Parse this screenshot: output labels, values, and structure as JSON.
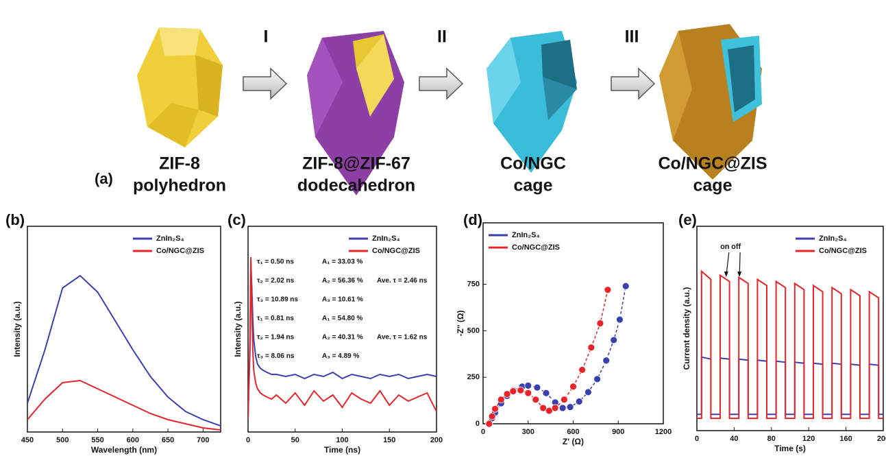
{
  "diagram": {
    "label": "(a)",
    "steps": [
      "I",
      "II",
      "III"
    ],
    "stages": [
      {
        "line1": "ZIF-8",
        "line2": "polyhedron"
      },
      {
        "line1": "ZIF-8@ZIF-67",
        "line2": "dodecahedron"
      },
      {
        "line1": "Co/NGC",
        "line2": "cage"
      },
      {
        "line1": "Co/NGC@ZIS",
        "line2": "cage"
      }
    ]
  },
  "chart_data": [
    {
      "type": "line",
      "label": "(b)",
      "x_label": "Wavelength (nm)",
      "y_label": "Intensity (a.u.)",
      "legend": "upper right",
      "xlim": [
        450,
        725
      ],
      "xticks": [
        450,
        500,
        550,
        600,
        650,
        700
      ],
      "ylim": [
        0,
        100
      ],
      "x": [
        450,
        475,
        500,
        525,
        550,
        575,
        600,
        625,
        650,
        675,
        700,
        725
      ],
      "series": [
        {
          "name": "ZnIn₂S₄",
          "color": "#3a3fb0",
          "values": [
            14,
            40,
            70,
            76,
            68,
            54,
            40,
            27,
            17,
            10,
            6,
            3
          ]
        },
        {
          "name": "Co/NGC@ZIS",
          "color": "#e8242a",
          "values": [
            6,
            16,
            24,
            25,
            21,
            17,
            13,
            9,
            6,
            4,
            2,
            1
          ]
        }
      ]
    },
    {
      "type": "line",
      "label": "(c)",
      "x_label": "Time (ns)",
      "y_label": "Intensity (a.u.)",
      "legend": "upper right",
      "xlim": [
        0,
        200
      ],
      "xticks": [
        0,
        50,
        100,
        150,
        200
      ],
      "ylim": [
        0,
        100
      ],
      "x": [
        0,
        2,
        3,
        4,
        5,
        6,
        8,
        10,
        13,
        16,
        20,
        25,
        30,
        40,
        50,
        60,
        70,
        80,
        90,
        100,
        110,
        120,
        130,
        140,
        150,
        160,
        170,
        180,
        190,
        200
      ],
      "series": [
        {
          "name": "ZnIn₂S₄",
          "color": "#3a3fb0",
          "values": [
            8,
            40,
            83,
            70,
            55,
            45,
            37,
            33,
            31,
            30,
            29,
            28,
            28,
            27,
            28,
            26,
            28,
            27,
            29,
            26,
            28,
            27,
            26,
            28,
            27,
            28,
            26,
            27,
            28,
            27
          ]
        },
        {
          "name": "Co/NGC@ZIS",
          "color": "#e8242a",
          "values": [
            6,
            45,
            85,
            60,
            40,
            30,
            24,
            21,
            19,
            18,
            17,
            16,
            18,
            14,
            19,
            13,
            20,
            15,
            18,
            12,
            19,
            16,
            14,
            20,
            13,
            18,
            15,
            17,
            19,
            10
          ]
        }
      ],
      "annotation_groups": [
        {
          "color": "#3a3fb0",
          "average": "Ave. τ = 2.46 ns",
          "rows": [
            [
              "τ₁ = 0.50 ns",
              "A₁ = 33.03 %"
            ],
            [
              "τ₂ = 2.02 ns",
              "A₂ = 56.36 %"
            ],
            [
              "τ₃ = 10.89 ns",
              "A₃ = 10.61 %"
            ]
          ]
        },
        {
          "color": "#e8242a",
          "average": "Ave. τ = 1.62 ns",
          "rows": [
            [
              "τ₁ = 0.81 ns",
              "A₁ = 54.80 %"
            ],
            [
              "τ₂ = 1.94 ns",
              "A₂ = 40.31 %"
            ],
            [
              "τ₃ = 8.06 ns",
              "A₃ = 4.89 %"
            ]
          ]
        }
      ]
    },
    {
      "type": "scatter",
      "label": "(d)",
      "x_label": "Z' (Ω)",
      "y_label": "-Z'' (Ω)",
      "legend": "upper left",
      "xlim": [
        0,
        1200
      ],
      "xticks": [
        0,
        300,
        600,
        900,
        1200
      ],
      "ylim": [
        0,
        1080
      ],
      "yticks": [
        0,
        250,
        500,
        750
      ],
      "series": [
        {
          "name": "ZnIn₂S₄",
          "color": "#3a3fb0",
          "x": [
            40,
            60,
            80,
            120,
            160,
            200,
            260,
            300,
            360,
            420,
            480,
            530,
            580,
            640,
            700,
            760,
            820,
            870,
            910,
            950
          ],
          "values": [
            0,
            30,
            60,
            110,
            150,
            180,
            200,
            205,
            195,
            165,
            115,
            85,
            90,
            120,
            170,
            240,
            340,
            450,
            560,
            740
          ]
        },
        {
          "name": "Co/NGC@ZIS",
          "color": "#e8242a",
          "x": [
            40,
            60,
            80,
            120,
            160,
            200,
            250,
            300,
            350,
            400,
            440,
            480,
            540,
            600,
            660,
            720,
            780,
            830
          ],
          "values": [
            0,
            40,
            80,
            130,
            160,
            175,
            180,
            165,
            130,
            85,
            70,
            85,
            130,
            200,
            290,
            410,
            540,
            720
          ]
        }
      ]
    },
    {
      "type": "line",
      "label": "(e)",
      "x_label": "Time (s)",
      "y_label": "Current density (a.u.)",
      "legend": "upper right",
      "xlim": [
        0,
        200
      ],
      "xticks": [
        0,
        40,
        80,
        120,
        160,
        200
      ],
      "ylim": [
        0,
        100
      ],
      "annotations": [
        "on",
        "off"
      ],
      "x": [
        0,
        5,
        5,
        15,
        15,
        25,
        25,
        35,
        35,
        45,
        45,
        55,
        55,
        65,
        65,
        75,
        75,
        85,
        85,
        95,
        95,
        105,
        105,
        115,
        115,
        125,
        125,
        135,
        135,
        145,
        145,
        155,
        155,
        165,
        165,
        175,
        175,
        185,
        185,
        195,
        195,
        200
      ],
      "series": [
        {
          "name": "ZnIn₂S₄",
          "color": "#3a3fb0",
          "values": [
            8,
            8,
            36,
            35,
            8,
            8,
            35.5,
            35,
            8,
            8,
            35,
            34.5,
            8,
            8,
            34.5,
            34,
            8,
            8,
            34,
            33.5,
            8,
            8,
            33.5,
            33,
            8,
            8,
            33,
            32.5,
            8,
            8,
            33,
            32.5,
            8,
            8,
            32.5,
            32,
            8,
            8,
            32.5,
            32,
            8,
            8
          ]
        },
        {
          "name": "Co/NGC@ZIS",
          "color": "#e8242a",
          "values": [
            6,
            6,
            78,
            74,
            6,
            6,
            76,
            73,
            6,
            6,
            75,
            72,
            6,
            6,
            74,
            71,
            6,
            6,
            73,
            70,
            6,
            6,
            72,
            69,
            6,
            6,
            71,
            68,
            6,
            6,
            70,
            67,
            6,
            6,
            69,
            66,
            6,
            6,
            68,
            65,
            6,
            6
          ]
        }
      ]
    }
  ]
}
